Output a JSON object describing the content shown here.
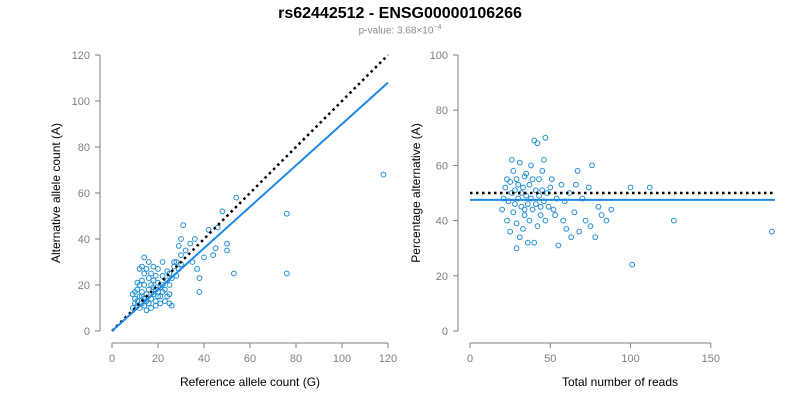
{
  "header": {
    "title": "rs62442512 - ENSG00000106266",
    "pvalue_prefix": "p-value: 3.68×10",
    "pvalue_exp": "−4"
  },
  "colors": {
    "points": "#1f8fd6",
    "fit": "#1e88e5",
    "reference": "#000000"
  },
  "chart_data": [
    {
      "type": "scatter",
      "xlabel": "Reference allele count (G)",
      "ylabel": "Alternative allele count (A)",
      "xlim": [
        0,
        120
      ],
      "ylim": [
        0,
        120
      ],
      "xticks": [
        0,
        20,
        40,
        60,
        80,
        100,
        120
      ],
      "yticks": [
        0,
        20,
        40,
        60,
        80,
        100,
        120
      ],
      "reference_line": {
        "style": "dotted",
        "slope": 1,
        "intercept": 0
      },
      "fit_line": {
        "style": "solid",
        "from": [
          0,
          0
        ],
        "to": [
          120,
          108
        ]
      },
      "points": [
        [
          9,
          10
        ],
        [
          10,
          12
        ],
        [
          10,
          14
        ],
        [
          11,
          11
        ],
        [
          11,
          13
        ],
        [
          12,
          15
        ],
        [
          12,
          10
        ],
        [
          13,
          12
        ],
        [
          13,
          17
        ],
        [
          14,
          14
        ],
        [
          14,
          11
        ],
        [
          15,
          16
        ],
        [
          15,
          13
        ],
        [
          16,
          18
        ],
        [
          16,
          12
        ],
        [
          17,
          14
        ],
        [
          17,
          20
        ],
        [
          18,
          16
        ],
        [
          18,
          22
        ],
        [
          19,
          13
        ],
        [
          19,
          18
        ],
        [
          20,
          17
        ],
        [
          20,
          21
        ],
        [
          21,
          15
        ],
        [
          21,
          19
        ],
        [
          22,
          24
        ],
        [
          22,
          20
        ],
        [
          23,
          18
        ],
        [
          24,
          22
        ],
        [
          24,
          26
        ],
        [
          25,
          25
        ],
        [
          25,
          20
        ],
        [
          26,
          23
        ],
        [
          27,
          28
        ],
        [
          28,
          24
        ],
        [
          29,
          27
        ],
        [
          30,
          33
        ],
        [
          30,
          29
        ],
        [
          11,
          18
        ],
        [
          12,
          20
        ],
        [
          13,
          22
        ],
        [
          14,
          25
        ],
        [
          15,
          27
        ],
        [
          16,
          30
        ],
        [
          18,
          28
        ],
        [
          20,
          27
        ],
        [
          22,
          30
        ],
        [
          12,
          27
        ],
        [
          13,
          28
        ],
        [
          14,
          32
        ],
        [
          17,
          25
        ],
        [
          19,
          24
        ],
        [
          15,
          9
        ],
        [
          17,
          10
        ],
        [
          19,
          11
        ],
        [
          21,
          12
        ],
        [
          23,
          13
        ],
        [
          25,
          12
        ],
        [
          26,
          11
        ],
        [
          10,
          17
        ],
        [
          11,
          21
        ],
        [
          9,
          16
        ],
        [
          16,
          23
        ],
        [
          14,
          20
        ],
        [
          13,
          15
        ],
        [
          18,
          19
        ],
        [
          20,
          15
        ],
        [
          22,
          17
        ],
        [
          24,
          15
        ],
        [
          30,
          40
        ],
        [
          31,
          46
        ],
        [
          32,
          35
        ],
        [
          34,
          38
        ],
        [
          36,
          40
        ],
        [
          35,
          30
        ],
        [
          37,
          27
        ],
        [
          38,
          17
        ],
        [
          38,
          23
        ],
        [
          40,
          32
        ],
        [
          45,
          36
        ],
        [
          46,
          45
        ],
        [
          48,
          52
        ],
        [
          50,
          38
        ],
        [
          50,
          35
        ],
        [
          53,
          25
        ],
        [
          54,
          58
        ],
        [
          76,
          51
        ],
        [
          76,
          25
        ],
        [
          118,
          68
        ],
        [
          27,
          30
        ],
        [
          29,
          37
        ],
        [
          42,
          44
        ],
        [
          44,
          33
        ],
        [
          25,
          16
        ],
        [
          28,
          30
        ]
      ]
    },
    {
      "type": "scatter",
      "xlabel": "Total number of reads",
      "ylabel": "Percentage alternative (A)",
      "xlim": [
        0,
        190
      ],
      "ylim": [
        0,
        100
      ],
      "xticks": [
        0,
        50,
        100,
        150
      ],
      "yticks": [
        0,
        20,
        40,
        60,
        80,
        100
      ],
      "reference_line": {
        "style": "dotted",
        "value": 50
      },
      "fit_line": {
        "style": "solid",
        "value": 47.5
      },
      "points": [
        [
          20,
          44
        ],
        [
          21,
          48
        ],
        [
          22,
          52
        ],
        [
          23,
          40
        ],
        [
          24,
          47
        ],
        [
          25,
          54
        ],
        [
          25,
          36
        ],
        [
          26,
          50
        ],
        [
          27,
          43
        ],
        [
          27,
          58
        ],
        [
          28,
          51
        ],
        [
          28,
          46
        ],
        [
          29,
          39
        ],
        [
          29,
          55
        ],
        [
          30,
          48
        ],
        [
          30,
          53
        ],
        [
          31,
          34
        ],
        [
          31,
          61
        ],
        [
          32,
          45
        ],
        [
          32,
          50
        ],
        [
          33,
          52
        ],
        [
          33,
          37
        ],
        [
          34,
          56
        ],
        [
          34,
          42
        ],
        [
          35,
          49
        ],
        [
          35,
          57
        ],
        [
          36,
          32
        ],
        [
          36,
          46
        ],
        [
          37,
          53
        ],
        [
          37,
          40
        ],
        [
          38,
          60
        ],
        [
          38,
          48
        ],
        [
          39,
          44
        ],
        [
          39,
          55
        ],
        [
          40,
          69
        ],
        [
          40,
          32
        ],
        [
          41,
          51
        ],
        [
          41,
          46
        ],
        [
          42,
          68
        ],
        [
          42,
          38
        ],
        [
          43,
          49
        ],
        [
          43,
          55
        ],
        [
          44,
          45
        ],
        [
          44,
          42
        ],
        [
          45,
          51
        ],
        [
          45,
          58
        ],
        [
          46,
          62
        ],
        [
          46,
          47
        ],
        [
          47,
          70
        ],
        [
          47,
          40
        ],
        [
          48,
          50
        ],
        [
          49,
          45
        ],
        [
          50,
          52
        ],
        [
          51,
          55
        ],
        [
          52,
          44
        ],
        [
          53,
          42
        ],
        [
          54,
          48
        ],
        [
          55,
          31
        ],
        [
          57,
          53
        ],
        [
          58,
          40
        ],
        [
          59,
          47
        ],
        [
          60,
          37
        ],
        [
          62,
          50
        ],
        [
          63,
          34
        ],
        [
          65,
          43
        ],
        [
          66,
          53
        ],
        [
          67,
          58
        ],
        [
          68,
          36
        ],
        [
          70,
          48
        ],
        [
          72,
          40
        ],
        [
          74,
          52
        ],
        [
          75,
          38
        ],
        [
          76,
          60
        ],
        [
          78,
          34
        ],
        [
          80,
          45
        ],
        [
          82,
          42
        ],
        [
          85,
          40
        ],
        [
          88,
          44
        ],
        [
          100,
          52
        ],
        [
          101,
          24
        ],
        [
          112,
          52
        ],
        [
          127,
          40
        ],
        [
          188,
          36
        ],
        [
          23,
          55
        ],
        [
          26,
          62
        ],
        [
          29,
          30
        ],
        [
          34,
          44
        ]
      ]
    }
  ]
}
